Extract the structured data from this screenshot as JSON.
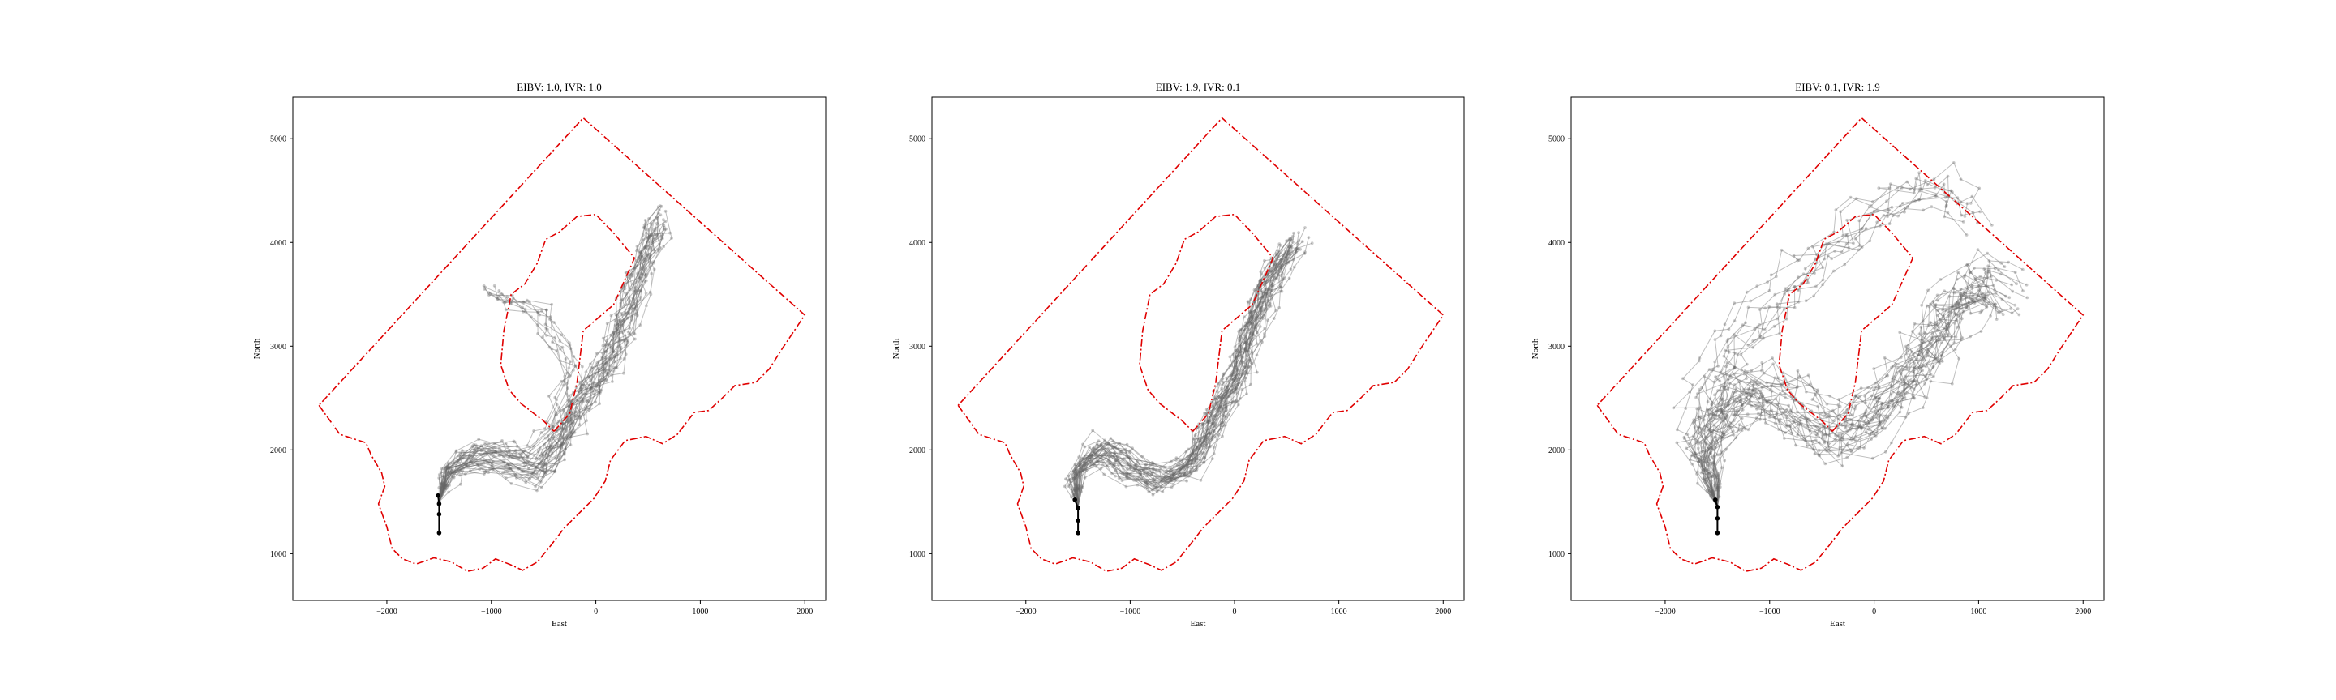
{
  "figure": {
    "background": "#ffffff",
    "boundary_color": "#e00000",
    "path_color": "#666666",
    "start_color": "#000000"
  },
  "chart_data": [
    {
      "type": "line",
      "title": "EIBV: 1.0, IVR: 1.0",
      "xlabel": "East",
      "ylabel": "North",
      "xlim": [
        -2900,
        2200
      ],
      "ylim": [
        550,
        5400
      ],
      "xticks": [
        -2000,
        -1000,
        0,
        1000,
        2000
      ],
      "yticks": [
        1000,
        2000,
        3000,
        4000,
        5000
      ],
      "xtick_labels": [
        "−2000",
        "−1000",
        "0",
        "1000",
        "2000"
      ],
      "ytick_labels": [
        "1000",
        "2000",
        "3000",
        "4000",
        "5000"
      ],
      "grid": false,
      "legend": "none",
      "start_path": [
        [
          -1500,
          1200
        ],
        [
          -1500,
          1380
        ],
        [
          -1500,
          1480
        ],
        [
          -1510,
          1560
        ]
      ],
      "seed": 11,
      "n_paths": 34,
      "spread": 130,
      "main_route": [
        [
          -1500,
          1500
        ],
        [
          -1420,
          1800
        ],
        [
          -1100,
          1950
        ],
        [
          -750,
          1850
        ],
        [
          -550,
          1780
        ],
        [
          -350,
          2050
        ],
        [
          -150,
          2450
        ],
        [
          150,
          2900
        ],
        [
          300,
          3300
        ],
        [
          450,
          3800
        ],
        [
          600,
          4200
        ]
      ],
      "alt_route": [
        [
          -1500,
          1500
        ],
        [
          -1300,
          1850
        ],
        [
          -900,
          1950
        ],
        [
          -650,
          1880
        ],
        [
          -420,
          2120
        ],
        [
          -250,
          2700
        ],
        [
          -550,
          3250
        ],
        [
          -1050,
          3450
        ]
      ]
    },
    {
      "type": "line",
      "title": "EIBV: 1.9, IVR: 0.1",
      "xlabel": "East",
      "ylabel": "North",
      "xlim": [
        -2900,
        2200
      ],
      "ylim": [
        550,
        5400
      ],
      "xticks": [
        -2000,
        -1000,
        0,
        1000,
        2000
      ],
      "yticks": [
        1000,
        2000,
        3000,
        4000,
        5000
      ],
      "xtick_labels": [
        "−2000",
        "−1000",
        "0",
        "1000",
        "2000"
      ],
      "ytick_labels": [
        "1000",
        "2000",
        "3000",
        "4000",
        "5000"
      ],
      "grid": false,
      "legend": "none",
      "start_path": [
        [
          -1500,
          1200
        ],
        [
          -1500,
          1320
        ],
        [
          -1500,
          1440
        ],
        [
          -1530,
          1520
        ]
      ],
      "seed": 23,
      "n_paths": 34,
      "spread": 110,
      "main_route": [
        [
          -1500,
          1450
        ],
        [
          -1500,
          1800
        ],
        [
          -1250,
          2000
        ],
        [
          -950,
          1800
        ],
        [
          -700,
          1700
        ],
        [
          -400,
          1850
        ],
        [
          -200,
          2300
        ],
        [
          50,
          2800
        ],
        [
          200,
          3250
        ],
        [
          350,
          3650
        ],
        [
          600,
          4000
        ]
      ],
      "alt_route": [
        [
          -1500,
          1450
        ],
        [
          -1600,
          1700
        ],
        [
          -1350,
          2050
        ],
        [
          -1000,
          1850
        ],
        [
          -650,
          1750
        ],
        [
          -300,
          2050
        ],
        [
          0,
          2700
        ],
        [
          150,
          3350
        ],
        [
          400,
          3900
        ]
      ]
    },
    {
      "type": "line",
      "title": "EIBV: 0.1, IVR: 1.9",
      "xlabel": "East",
      "ylabel": "North",
      "xlim": [
        -2900,
        2200
      ],
      "ylim": [
        550,
        5400
      ],
      "xticks": [
        -2000,
        -1000,
        0,
        1000,
        2000
      ],
      "yticks": [
        1000,
        2000,
        3000,
        4000,
        5000
      ],
      "xtick_labels": [
        "−2000",
        "−1000",
        "0",
        "1000",
        "2000"
      ],
      "ytick_labels": [
        "1000",
        "2000",
        "3000",
        "4000",
        "5000"
      ],
      "grid": false,
      "legend": "none",
      "start_path": [
        [
          -1500,
          1200
        ],
        [
          -1500,
          1340
        ],
        [
          -1500,
          1450
        ],
        [
          -1520,
          1520
        ]
      ],
      "seed": 37,
      "n_paths": 36,
      "spread": 210,
      "main_route": [
        [
          -1500,
          1450
        ],
        [
          -1600,
          2100
        ],
        [
          -1200,
          2650
        ],
        [
          -800,
          2450
        ],
        [
          -400,
          2150
        ],
        [
          0,
          2350
        ],
        [
          400,
          2800
        ],
        [
          700,
          3300
        ],
        [
          1000,
          3650
        ],
        [
          1250,
          3500
        ]
      ],
      "alt_route": [
        [
          -1500,
          1450
        ],
        [
          -1700,
          2400
        ],
        [
          -1350,
          3050
        ],
        [
          -800,
          3600
        ],
        [
          -400,
          4000
        ],
        [
          100,
          4400
        ],
        [
          600,
          4600
        ],
        [
          900,
          4300
        ]
      ]
    }
  ]
}
